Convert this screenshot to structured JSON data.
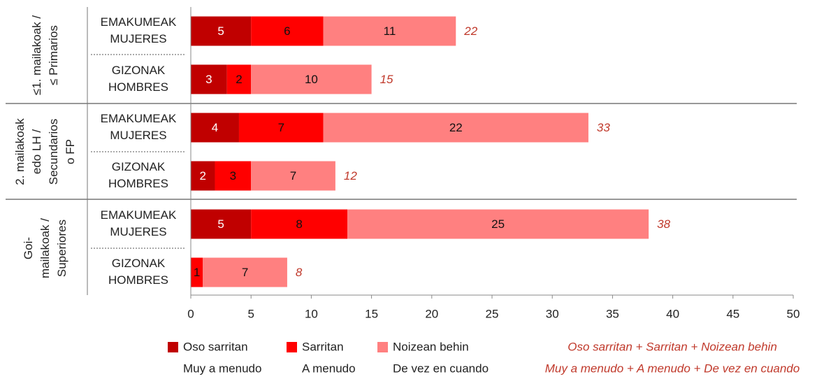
{
  "chart_data": {
    "type": "stacked-bar-horizontal",
    "groups": [
      {
        "label": [
          "≤1. mailakoak /",
          "≤ Primarios"
        ]
      },
      {
        "label": [
          "2. mailakoak",
          "edo LH /",
          "Secundarios",
          "o FP"
        ]
      },
      {
        "label": [
          "Goi-",
          "mailakoak /",
          "Superiores"
        ]
      }
    ],
    "categories": [
      [
        "EMAKUMEAK",
        "MUJERES"
      ],
      [
        "GIZONAK",
        "HOMBRES"
      ],
      [
        "EMAKUMEAK",
        "MUJERES"
      ],
      [
        "GIZONAK",
        "HOMBRES"
      ],
      [
        "EMAKUMEAK",
        "MUJERES"
      ],
      [
        "GIZONAK",
        "HOMBRES"
      ]
    ],
    "series": [
      {
        "name": [
          "Oso sarritan",
          "Muy a menudo"
        ],
        "color": "#c00000",
        "values": [
          5,
          3,
          4,
          2,
          5,
          null
        ]
      },
      {
        "name": [
          "Sarritan",
          "A menudo"
        ],
        "color": "#ff0000",
        "values": [
          6,
          2,
          7,
          3,
          8,
          1
        ]
      },
      {
        "name": [
          "Noizean behin",
          "De vez en cuando"
        ],
        "color": "#ff8080",
        "values": [
          11,
          10,
          22,
          7,
          25,
          7
        ]
      }
    ],
    "totals": [
      22,
      15,
      33,
      12,
      38,
      8
    ],
    "totals_legend": [
      "Oso sarritan + Sarritan + Noizean behin",
      "Muy a menudo + A menudo + De vez en cuando"
    ],
    "totals_color": "#c0392b",
    "xlim": [
      0,
      50
    ],
    "xticks": [
      0,
      5,
      10,
      15,
      20,
      25,
      30,
      35,
      40,
      45,
      50
    ],
    "grid": false
  }
}
